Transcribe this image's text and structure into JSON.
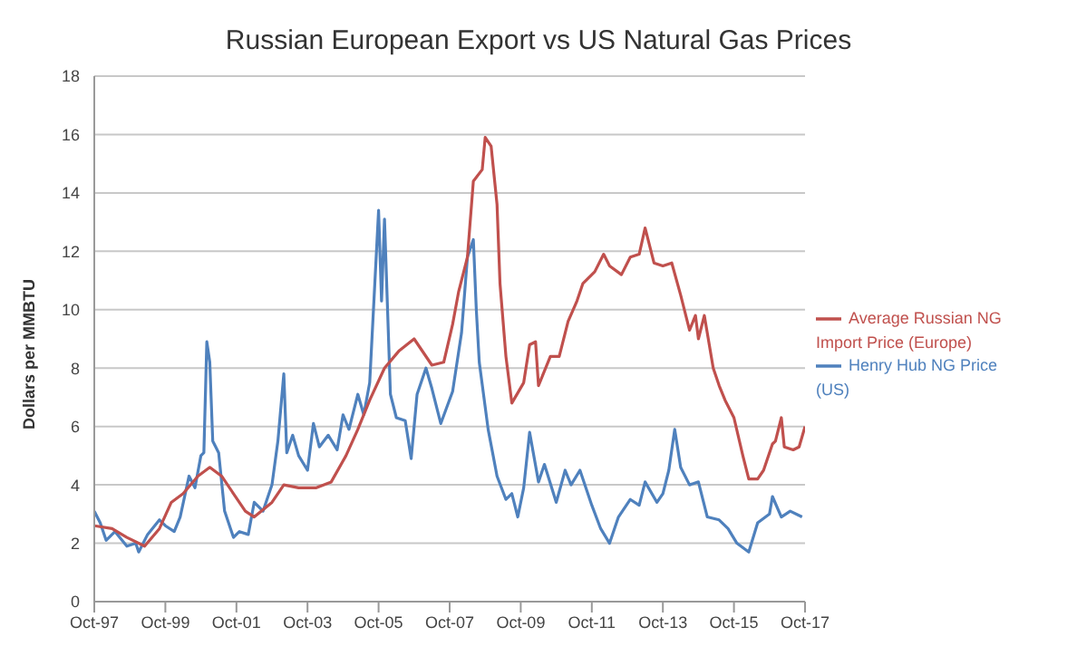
{
  "chart_data": {
    "type": "line",
    "title": "Russian European Export vs US Natural Gas Prices",
    "ylabel": "Dollars per MMBTU",
    "xlim": [
      "1997-10",
      "2017-10"
    ],
    "xticks": [
      {
        "value": "1997-10",
        "label": "Oct-97"
      },
      {
        "value": "1999-10",
        "label": "Oct-99"
      },
      {
        "value": "2001-10",
        "label": "Oct-01"
      },
      {
        "value": "2003-10",
        "label": "Oct-03"
      },
      {
        "value": "2005-10",
        "label": "Oct-05"
      },
      {
        "value": "2007-10",
        "label": "Oct-07"
      },
      {
        "value": "2009-10",
        "label": "Oct-09"
      },
      {
        "value": "2011-10",
        "label": "Oct-11"
      },
      {
        "value": "2013-10",
        "label": "Oct-13"
      },
      {
        "value": "2015-10",
        "label": "Oct-15"
      },
      {
        "value": "2017-10",
        "label": "Oct-17"
      }
    ],
    "ylim": [
      0,
      18
    ],
    "yticks": [
      0,
      2,
      4,
      6,
      8,
      10,
      12,
      14,
      16,
      18
    ],
    "grid": "y",
    "legend": "right",
    "marker": "none",
    "line_style": "solid",
    "series": [
      {
        "name": "Henry Hub NG Price (US)",
        "color": "#4f81bd",
        "x": [
          "1997-10",
          "1997-12",
          "1998-02",
          "1998-05",
          "1998-09",
          "1998-12",
          "1999-01",
          "1999-04",
          "1999-08",
          "1999-10",
          "2000-01",
          "2000-03",
          "2000-06",
          "2000-08",
          "2000-10",
          "2000-11",
          "2000-12",
          "2001-01",
          "2001-02",
          "2001-04",
          "2001-06",
          "2001-09",
          "2001-11",
          "2002-02",
          "2002-04",
          "2002-07",
          "2002-10",
          "2002-12",
          "2003-02",
          "2003-03",
          "2003-05",
          "2003-07",
          "2003-10",
          "2003-12",
          "2004-02",
          "2004-05",
          "2004-08",
          "2004-10",
          "2004-12",
          "2005-03",
          "2005-05",
          "2005-07",
          "2005-10",
          "2005-11",
          "2005-12",
          "2006-02",
          "2006-04",
          "2006-07",
          "2006-09",
          "2006-11",
          "2007-02",
          "2007-04",
          "2007-07",
          "2007-11",
          "2008-02",
          "2008-04",
          "2008-06",
          "2008-07",
          "2008-08",
          "2008-11",
          "2009-02",
          "2009-05",
          "2009-07",
          "2009-09",
          "2009-11",
          "2010-01",
          "2010-04",
          "2010-06",
          "2010-10",
          "2011-01",
          "2011-03",
          "2011-06",
          "2011-10",
          "2012-01",
          "2012-04",
          "2012-07",
          "2012-11",
          "2013-02",
          "2013-04",
          "2013-08",
          "2013-10",
          "2013-12",
          "2014-02",
          "2014-04",
          "2014-07",
          "2014-10",
          "2015-01",
          "2015-05",
          "2015-08",
          "2015-11",
          "2016-03",
          "2016-06",
          "2016-10",
          "2016-11",
          "2017-02",
          "2017-05",
          "2017-09"
        ],
        "values": [
          3.1,
          2.7,
          2.1,
          2.4,
          1.9,
          2.0,
          1.7,
          2.3,
          2.8,
          2.6,
          2.4,
          2.9,
          4.3,
          3.9,
          5.0,
          5.1,
          8.9,
          8.2,
          5.5,
          5.1,
          3.1,
          2.2,
          2.4,
          2.3,
          3.4,
          3.1,
          4.0,
          5.5,
          7.8,
          5.1,
          5.7,
          5.0,
          4.5,
          6.1,
          5.3,
          5.7,
          5.2,
          6.4,
          5.9,
          7.1,
          6.4,
          7.5,
          13.4,
          10.3,
          13.1,
          7.1,
          6.3,
          6.2,
          4.9,
          7.1,
          8.0,
          7.3,
          6.1,
          7.2,
          9.2,
          11.8,
          12.4,
          10.0,
          8.2,
          5.9,
          4.3,
          3.5,
          3.7,
          2.9,
          3.9,
          5.8,
          4.1,
          4.7,
          3.4,
          4.5,
          4.0,
          4.5,
          3.3,
          2.5,
          2.0,
          2.9,
          3.5,
          3.3,
          4.1,
          3.4,
          3.7,
          4.5,
          5.9,
          4.6,
          4.0,
          4.1,
          2.9,
          2.8,
          2.5,
          2.0,
          1.7,
          2.7,
          3.0,
          3.6,
          2.9,
          3.1,
          2.9
        ]
      },
      {
        "name": "Average Russian NG Import Price (Europe)",
        "color": "#c0504d",
        "x": [
          "1997-10",
          "1998-04",
          "1998-09",
          "1999-03",
          "1999-08",
          "1999-12",
          "2000-04",
          "2000-09",
          "2001-01",
          "2001-05",
          "2001-09",
          "2002-01",
          "2002-04",
          "2002-10",
          "2003-02",
          "2003-07",
          "2004-01",
          "2004-06",
          "2004-11",
          "2005-03",
          "2005-07",
          "2005-12",
          "2006-05",
          "2006-10",
          "2007-04",
          "2007-08",
          "2007-11",
          "2008-01",
          "2008-04",
          "2008-06",
          "2008-09",
          "2008-10",
          "2008-12",
          "2009-02",
          "2009-03",
          "2009-05",
          "2009-07",
          "2009-11",
          "2010-01",
          "2010-03",
          "2010-04",
          "2010-08",
          "2010-11",
          "2011-02",
          "2011-05",
          "2011-07",
          "2011-11",
          "2012-02",
          "2012-04",
          "2012-08",
          "2012-11",
          "2013-02",
          "2013-04",
          "2013-07",
          "2013-10",
          "2014-01",
          "2014-04",
          "2014-07",
          "2014-09",
          "2014-10",
          "2014-12",
          "2015-03",
          "2015-05",
          "2015-07",
          "2015-10",
          "2016-01",
          "2016-03",
          "2016-06",
          "2016-08",
          "2016-11",
          "2016-12",
          "2017-02",
          "2017-03",
          "2017-06",
          "2017-08",
          "2017-10"
        ],
        "values": [
          2.6,
          2.5,
          2.2,
          1.9,
          2.5,
          3.4,
          3.7,
          4.3,
          4.6,
          4.3,
          3.7,
          3.1,
          2.9,
          3.4,
          4.0,
          3.9,
          3.9,
          4.1,
          5.0,
          5.9,
          6.9,
          8.0,
          8.6,
          9.0,
          8.1,
          8.2,
          9.5,
          10.6,
          11.8,
          14.4,
          14.8,
          15.9,
          15.6,
          13.6,
          10.9,
          8.4,
          6.8,
          7.5,
          8.8,
          8.9,
          7.4,
          8.4,
          8.4,
          9.6,
          10.3,
          10.9,
          11.3,
          11.9,
          11.5,
          11.2,
          11.8,
          11.9,
          12.8,
          11.6,
          11.5,
          11.6,
          10.5,
          9.3,
          9.8,
          9.0,
          9.8,
          8.0,
          7.4,
          6.9,
          6.3,
          5.0,
          4.2,
          4.2,
          4.5,
          5.4,
          5.5,
          6.3,
          5.3,
          5.2,
          5.3,
          6.0
        ]
      }
    ]
  }
}
